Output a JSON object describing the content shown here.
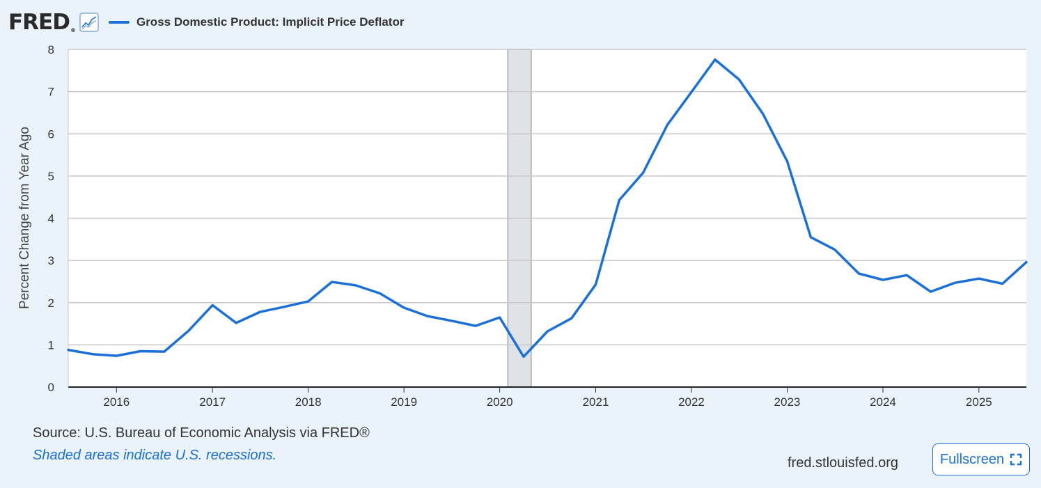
{
  "header": {
    "logo": "FRED",
    "logo_mark": "®",
    "graph_icon": "line-graph-icon",
    "legend_label": "Gross Domestic Product: Implicit Price Deflator"
  },
  "colors": {
    "line": "#1a6fd9",
    "recession": "#dfe3e8",
    "grid": "#c8c8c8",
    "background": "#eaf2fa"
  },
  "chart_data": {
    "type": "line",
    "title": "",
    "xlabel": "",
    "ylabel": "Percent Change from Year Ago",
    "ylim": [
      0,
      8
    ],
    "yticks": [
      0,
      1,
      2,
      3,
      4,
      5,
      6,
      7,
      8
    ],
    "xlim": [
      "2015-07-01",
      "2025-07-01"
    ],
    "xticks": [
      "2016",
      "2017",
      "2018",
      "2019",
      "2020",
      "2021",
      "2022",
      "2023",
      "2024",
      "2025"
    ],
    "grid": true,
    "recessions": [
      {
        "start": "2020-02-01",
        "end": "2020-04-30"
      }
    ],
    "series": [
      {
        "name": "Gross Domestic Product: Implicit Price Deflator",
        "points": [
          [
            "2015-07-01",
            0.88
          ],
          [
            "2015-10-01",
            0.78
          ],
          [
            "2016-01-01",
            0.74
          ],
          [
            "2016-04-01",
            0.85
          ],
          [
            "2016-07-01",
            0.84
          ],
          [
            "2016-10-01",
            1.33
          ],
          [
            "2017-01-01",
            1.94
          ],
          [
            "2017-04-01",
            1.52
          ],
          [
            "2017-07-01",
            1.78
          ],
          [
            "2017-10-01",
            1.9
          ],
          [
            "2018-01-01",
            2.03
          ],
          [
            "2018-04-01",
            2.49
          ],
          [
            "2018-07-01",
            2.41
          ],
          [
            "2018-10-01",
            2.22
          ],
          [
            "2019-01-01",
            1.88
          ],
          [
            "2019-04-01",
            1.68
          ],
          [
            "2019-07-01",
            1.57
          ],
          [
            "2019-10-01",
            1.45
          ],
          [
            "2020-01-01",
            1.65
          ],
          [
            "2020-04-01",
            0.72
          ],
          [
            "2020-07-01",
            1.32
          ],
          [
            "2020-10-01",
            1.63
          ],
          [
            "2021-01-01",
            2.43
          ],
          [
            "2021-04-01",
            4.43
          ],
          [
            "2021-07-01",
            5.08
          ],
          [
            "2021-10-01",
            6.21
          ],
          [
            "2022-01-01",
            6.99
          ],
          [
            "2022-04-01",
            7.76
          ],
          [
            "2022-07-01",
            7.29
          ],
          [
            "2022-10-01",
            6.47
          ],
          [
            "2023-01-01",
            5.35
          ],
          [
            "2023-04-01",
            3.55
          ],
          [
            "2023-07-01",
            3.26
          ],
          [
            "2023-10-01",
            2.69
          ],
          [
            "2024-01-01",
            2.54
          ],
          [
            "2024-04-01",
            2.65
          ],
          [
            "2024-07-01",
            2.26
          ],
          [
            "2024-10-01",
            2.47
          ],
          [
            "2025-01-01",
            2.57
          ],
          [
            "2025-04-01",
            2.45
          ],
          [
            "2025-07-01",
            2.96
          ]
        ]
      }
    ]
  },
  "footer": {
    "source": "Source: U.S. Bureau of Economic Analysis via FRED®",
    "shaded_note": "Shaded areas indicate U.S. recessions.",
    "site": "fred.stlouisfed.org",
    "fullscreen_label": "Fullscreen",
    "fullscreen_icon": "fullscreen-icon"
  }
}
